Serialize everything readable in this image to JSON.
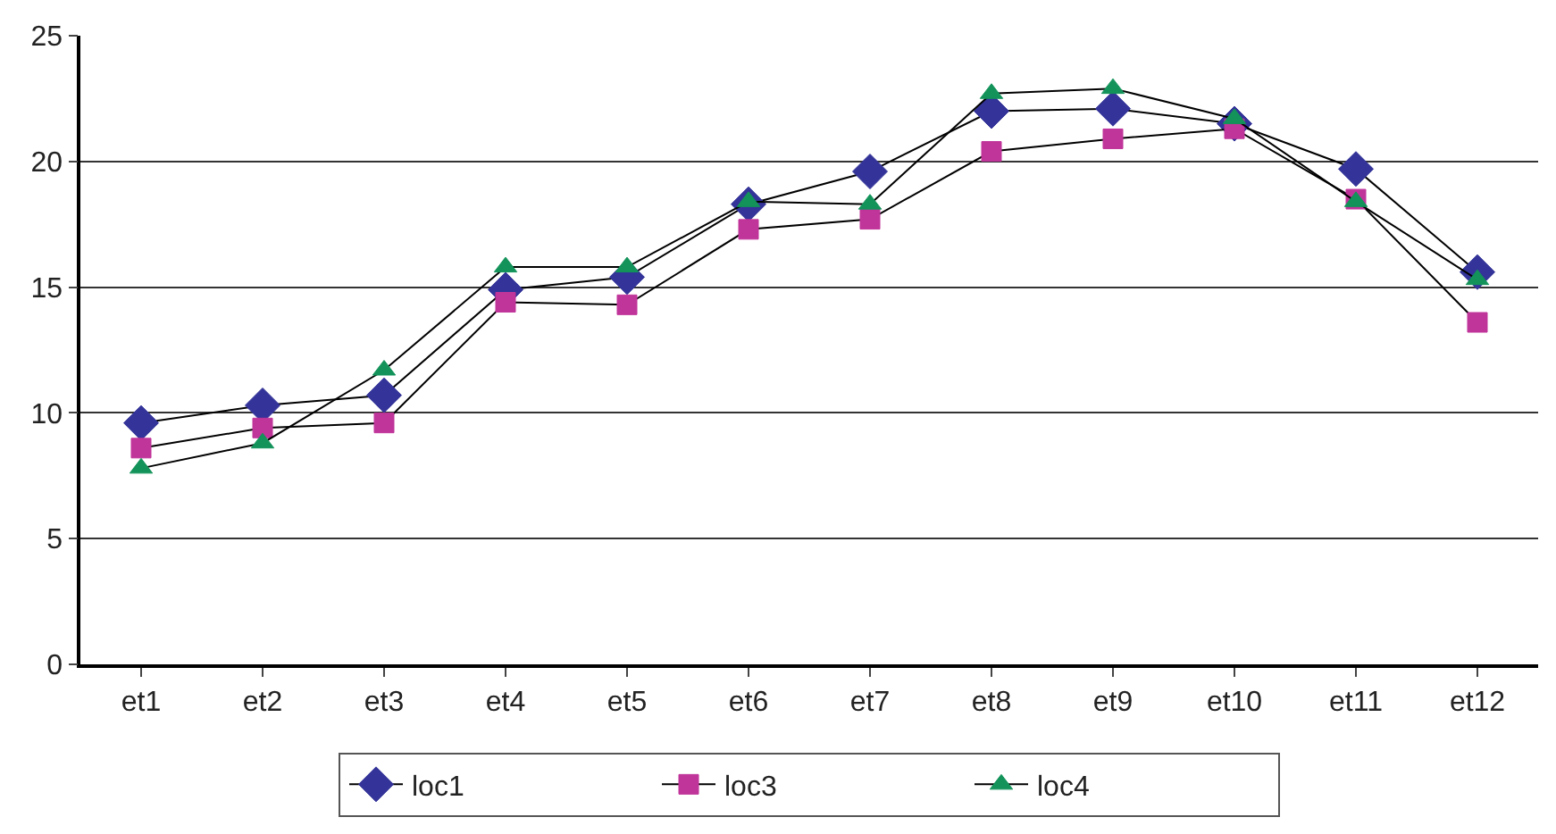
{
  "chart_data": {
    "type": "line",
    "categories": [
      "et1",
      "et2",
      "et3",
      "et4",
      "et5",
      "et6",
      "et7",
      "et8",
      "et9",
      "et10",
      "et11",
      "et12"
    ],
    "series": [
      {
        "name": "loc1",
        "color": "#333399",
        "marker": "diamond",
        "values": [
          9.6,
          10.3,
          10.7,
          14.9,
          15.4,
          18.3,
          19.6,
          22.0,
          22.1,
          21.5,
          19.7,
          15.6
        ]
      },
      {
        "name": "loc3",
        "color": "#c0359a",
        "marker": "square",
        "values": [
          8.6,
          9.4,
          9.6,
          14.4,
          14.3,
          17.3,
          17.7,
          20.4,
          20.9,
          21.3,
          18.5,
          13.6
        ]
      },
      {
        "name": "loc4",
        "color": "#13935a",
        "marker": "triangle",
        "values": [
          7.8,
          8.8,
          11.7,
          15.8,
          15.8,
          18.4,
          18.3,
          22.7,
          22.9,
          21.7,
          18.4,
          15.3
        ]
      }
    ],
    "ylim": [
      0,
      25
    ],
    "yticks": [
      0,
      5,
      10,
      15,
      20,
      25
    ],
    "grid": "y",
    "legend": "bottom",
    "line_style": "solid"
  }
}
